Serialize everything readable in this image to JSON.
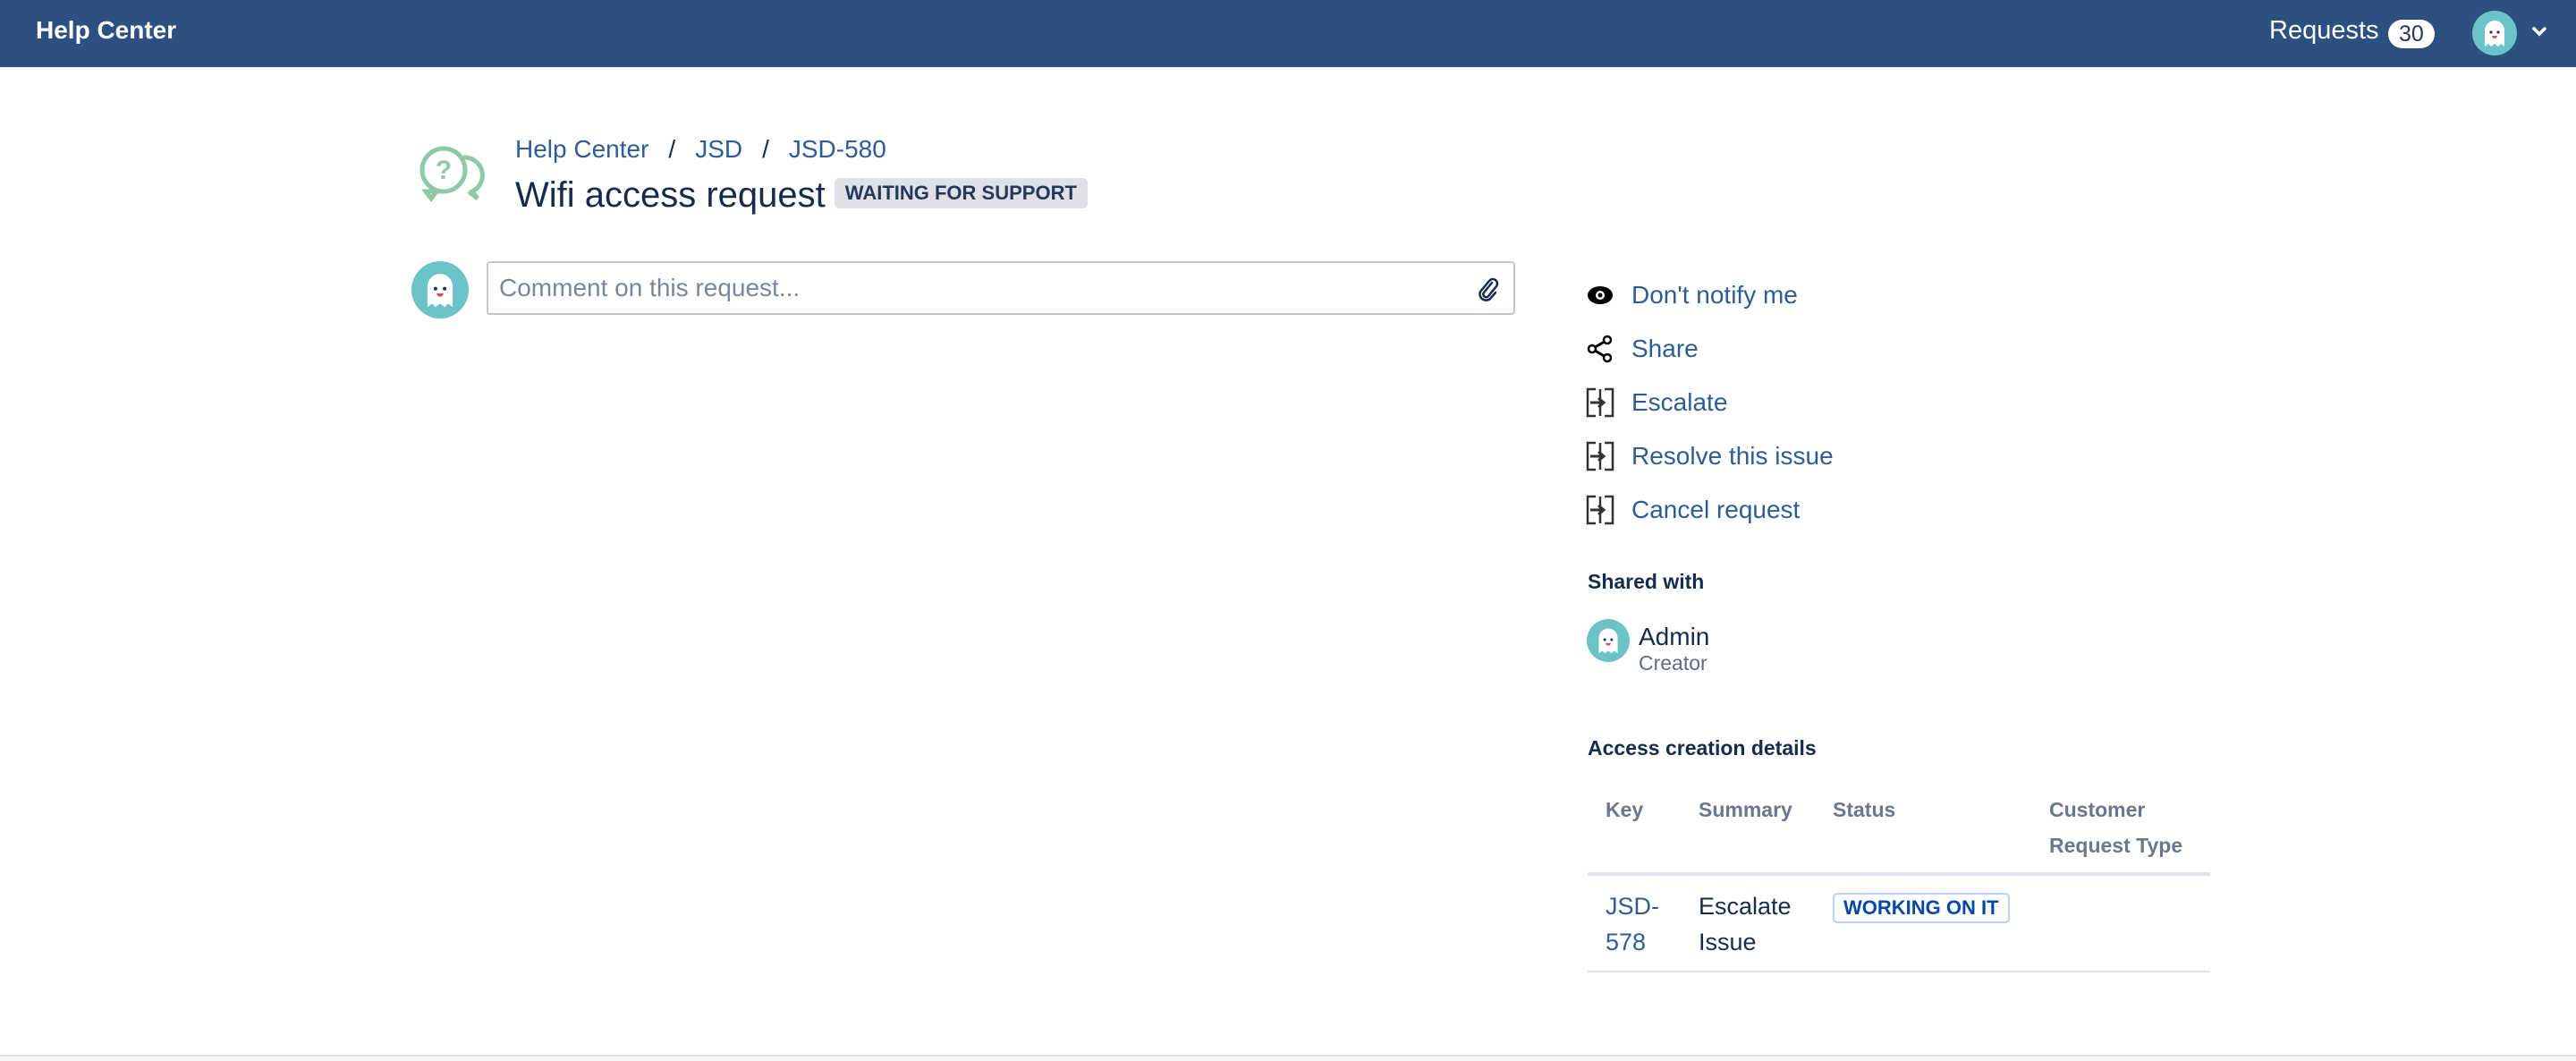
{
  "header": {
    "brand": "Help Center",
    "requests_label": "Requests",
    "requests_count": "30"
  },
  "breadcrumb": [
    "Help Center",
    "JSD",
    "JSD-580"
  ],
  "request": {
    "title": "Wifi access request",
    "status": "WAITING FOR SUPPORT"
  },
  "comment": {
    "placeholder": "Comment on this request..."
  },
  "actions": [
    {
      "label": "Don't notify me",
      "icon": "eye-icon"
    },
    {
      "label": "Share",
      "icon": "share-icon"
    },
    {
      "label": "Escalate",
      "icon": "transition-icon"
    },
    {
      "label": "Resolve this issue",
      "icon": "transition-icon"
    },
    {
      "label": "Cancel request",
      "icon": "transition-icon"
    }
  ],
  "shared": {
    "heading": "Shared with",
    "name": "Admin",
    "role": "Creator"
  },
  "linked": {
    "heading": "Access creation details",
    "columns": [
      "Key",
      "Summary",
      "Status",
      "Customer Request Type"
    ],
    "rows": [
      {
        "key": "JSD-578",
        "summary": "Escalate Issue",
        "status": "WORKING ON IT",
        "type": ""
      }
    ]
  },
  "colors": {
    "header": "#2c5080",
    "link": "#2d5c96",
    "avatar": "#6cc3c7"
  }
}
